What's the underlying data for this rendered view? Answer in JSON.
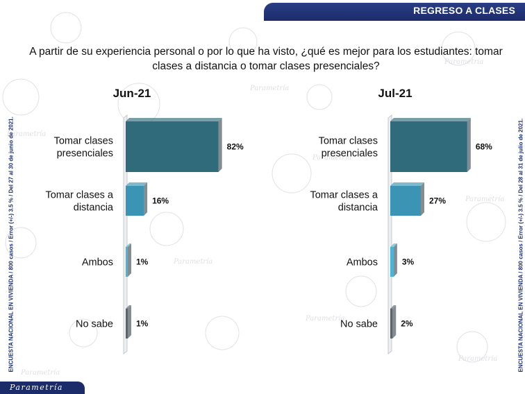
{
  "header": {
    "title": "REGRESO A CLASES"
  },
  "question": "A partir de su experiencia personal o por lo que ha visto, ¿qué es mejor para los estudiantes: tomar clases a distancia o tomar clases presenciales?",
  "side_notes": {
    "left": "ENCUESTA NACIONAL EN VIVIENDA / 800 casos / Error (+/-) 3.5 % / Del 27 al 30 de junio de 2021.",
    "right": "ENCUESTA NACIONAL EN VIVIENDA / 800 casos / Error (+/-) 3.5 % / Del 28 al 31 de julio de 2021."
  },
  "footer": {
    "logo": "Parametría"
  },
  "colors": {
    "c1": "#2f6b7a",
    "c2": "#3b94b4",
    "c3": "#4bb4d6",
    "c4": "#5e6468"
  },
  "chart_data": [
    {
      "type": "bar",
      "orientation": "horizontal",
      "title": "Jun-21",
      "categories": [
        [
          "Tomar clases",
          "presenciales"
        ],
        [
          "Tomar clases a",
          "distancia"
        ],
        [
          "Ambos"
        ],
        [
          "No sabe"
        ]
      ],
      "values": [
        82,
        16,
        1,
        1
      ],
      "value_labels": [
        "82%",
        "16%",
        "1%",
        "1%"
      ],
      "xlim": [
        0,
        100
      ]
    },
    {
      "type": "bar",
      "orientation": "horizontal",
      "title": "Jul-21",
      "categories": [
        [
          "Tomar clases",
          "presenciales"
        ],
        [
          "Tomar clases a",
          "distancia"
        ],
        [
          "Ambos"
        ],
        [
          "No sabe"
        ]
      ],
      "values": [
        68,
        27,
        3,
        2
      ],
      "value_labels": [
        "68%",
        "27%",
        "3%",
        "2%"
      ],
      "xlim": [
        0,
        100
      ]
    }
  ]
}
